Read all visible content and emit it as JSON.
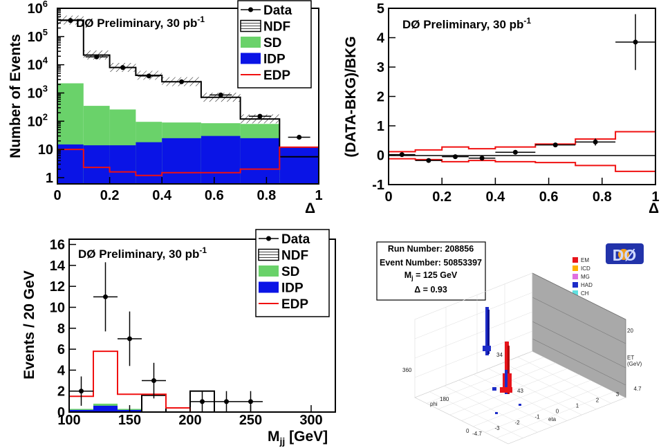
{
  "chart_data": [
    {
      "id": "delta-dist",
      "type": "bar",
      "scale": "log",
      "title": "DØ Preliminary, 30 pb",
      "title_sup": "-1",
      "xlabel": "Δ",
      "ylabel": "Number of Events",
      "xlim": [
        0,
        1
      ],
      "ylim": [
        0.6,
        1000000
      ],
      "x_ticks": [
        "0",
        "0.2",
        "0.4",
        "0.6",
        "0.8",
        "1"
      ],
      "y_ticks": [
        {
          "base": "1",
          "exp": ""
        },
        {
          "base": "10",
          "exp": ""
        },
        {
          "base": "10",
          "exp": "2"
        },
        {
          "base": "10",
          "exp": "3"
        },
        {
          "base": "10",
          "exp": "4"
        },
        {
          "base": "10",
          "exp": "5"
        },
        {
          "base": "10",
          "exp": "6"
        }
      ],
      "bin_edges": [
        0,
        0.1,
        0.2,
        0.3,
        0.4,
        0.55,
        0.7,
        0.85,
        1.0
      ],
      "series": [
        {
          "name": "NDF",
          "values": [
            380000,
            22000,
            8000,
            4200,
            2500,
            700,
            120,
            5.5
          ]
        },
        {
          "name": "SD",
          "values": [
            2200,
            350,
            260,
            95,
            90,
            85,
            80,
            12
          ]
        },
        {
          "name": "IDP",
          "values": [
            15,
            14,
            14,
            18,
            25,
            30,
            25,
            12
          ]
        },
        {
          "name": "EDP",
          "values": [
            10,
            2.3,
            1.6,
            1.2,
            1.5,
            1.5,
            2,
            12
          ]
        },
        {
          "name": "Data",
          "x": [
            0.05,
            0.15,
            0.25,
            0.35,
            0.475,
            0.625,
            0.775,
            0.925
          ],
          "values": [
            370000,
            19000,
            8000,
            4000,
            2500,
            850,
            150,
            27
          ]
        }
      ],
      "legend": [
        "Data",
        "NDF",
        "SD",
        "IDP",
        "EDP"
      ],
      "legend_position": "top-right"
    },
    {
      "id": "ratio",
      "type": "scatter",
      "title": "DØ Preliminary, 30 pb",
      "title_sup": "-1",
      "xlabel": "Δ",
      "ylabel": "(DATA-BKG)/BKG",
      "xlim": [
        0,
        1
      ],
      "ylim": [
        -1,
        5
      ],
      "x_ticks": [
        "0",
        "0.2",
        "0.4",
        "0.6",
        "0.8",
        "1"
      ],
      "y_ticks": [
        "-1",
        "0",
        "1",
        "2",
        "3",
        "4",
        "5"
      ],
      "points": [
        {
          "x": 0.05,
          "y": 0.02,
          "err": 0.03
        },
        {
          "x": 0.15,
          "y": -0.18,
          "err": 0.03
        },
        {
          "x": 0.25,
          "y": -0.05,
          "err": 0.03
        },
        {
          "x": 0.35,
          "y": -0.1,
          "err": 0.04
        },
        {
          "x": 0.475,
          "y": 0.1,
          "err": 0.05
        },
        {
          "x": 0.625,
          "y": 0.35,
          "err": 0.06
        },
        {
          "x": 0.775,
          "y": 0.45,
          "err": 0.12
        },
        {
          "x": 0.925,
          "y": 3.85,
          "err": 0.95
        }
      ],
      "band_edges": [
        0,
        0.1,
        0.2,
        0.3,
        0.4,
        0.55,
        0.7,
        0.85,
        1.0
      ],
      "band_upper": [
        0.12,
        0.18,
        0.28,
        0.22,
        0.28,
        0.38,
        0.55,
        0.8
      ],
      "band_lower": [
        -0.12,
        -0.15,
        -0.22,
        -0.18,
        -0.22,
        -0.25,
        -0.35,
        -0.55
      ]
    },
    {
      "id": "mjj",
      "type": "bar",
      "title": "DØ Preliminary, 30 pb",
      "title_sup": "-1",
      "xlabel": "M",
      "xlabel_sub": "jj",
      "xlabel_unit": " [GeV]",
      "ylabel": "Events / 20 GeV",
      "xlim": [
        100,
        320
      ],
      "ylim": [
        0,
        16.5
      ],
      "x_ticks": [
        "100",
        "150",
        "200",
        "250",
        "300"
      ],
      "y_ticks": [
        "0",
        "2",
        "4",
        "6",
        "8",
        "10",
        "12",
        "14",
        "16"
      ],
      "bin_edges": [
        100,
        120,
        140,
        160,
        180,
        200,
        220,
        240,
        260,
        320
      ],
      "series": [
        {
          "name": "NDF",
          "values": [
            0,
            0,
            0,
            1.6,
            0,
            2.0,
            0,
            0,
            0
          ]
        },
        {
          "name": "SD",
          "values": [
            0.1,
            0.2,
            0.1,
            0,
            0,
            0,
            0,
            0,
            0
          ]
        },
        {
          "name": "IDP",
          "values": [
            0.2,
            0.6,
            0.2,
            0,
            0,
            0,
            0,
            0,
            0
          ]
        },
        {
          "name": "EDP",
          "values": [
            1.5,
            5.8,
            1.7,
            1.7,
            0.4,
            0,
            0,
            0,
            0
          ]
        },
        {
          "name": "Data",
          "x": [
            110,
            130,
            150,
            170,
            210,
            230,
            250
          ],
          "values": [
            2,
            11,
            7,
            3,
            1,
            1,
            1
          ],
          "err": [
            1.4,
            3.3,
            2.6,
            1.7,
            1.0,
            1.0,
            1.0
          ]
        }
      ],
      "legend": [
        "Data",
        "NDF",
        "SD",
        "IDP",
        "EDP"
      ],
      "legend_position": "top-right"
    }
  ],
  "event_display": {
    "run_label": "Run Number: 208856",
    "event_label": "Event Number: 50853397",
    "mass_label": "M",
    "mass_sub": "j",
    "mass_value": " = 125 GeV",
    "delta_label": "Δ = 0.93",
    "logo_text": "DØ",
    "legend": [
      {
        "label": "EM",
        "color": "#e8141b"
      },
      {
        "label": "ICD",
        "color": "#ffb000"
      },
      {
        "label": "MG",
        "color": "#e070e0"
      },
      {
        "label": "HAD",
        "color": "#1d2cc8"
      },
      {
        "label": "CH",
        "color": "#60e0e0"
      }
    ],
    "jet1_et": "34",
    "jet2_et": "43",
    "axis_labels": {
      "phi": "phi",
      "eta": "eta",
      "et": "ET",
      "et_unit": "(GeV)",
      "et_max": "20",
      "phi_max": "360",
      "phi_mid": "180",
      "phi_min": "0"
    },
    "eta_ticks": [
      "-4.7",
      "-3",
      "-2",
      "-1",
      "0",
      "1",
      "2",
      "3",
      "4.7"
    ]
  },
  "colors": {
    "sd": "#6ad26a",
    "idp": "#0a14e6",
    "edp": "#f01010",
    "ndf_fill": "#ffffff"
  }
}
